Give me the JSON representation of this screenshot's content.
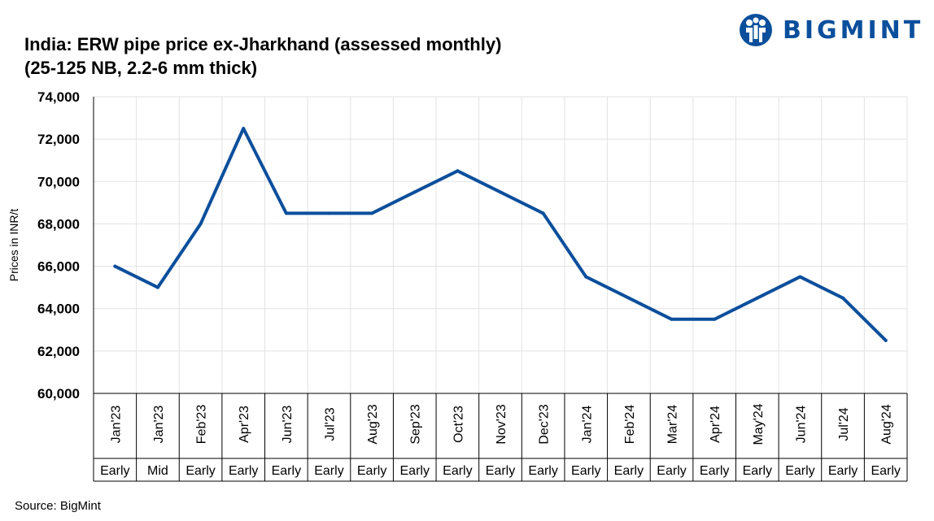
{
  "brand": {
    "name": "BIGMINT",
    "icon": "bigmint-logo-icon",
    "color": "#0b4f9c"
  },
  "source": "Source: BigMint",
  "chart_data": {
    "type": "line",
    "title": "India: ERW pipe price ex-Jharkhand (assessed monthly)",
    "subtitle": "(25-125 NB, 2.2-6 mm thick)",
    "xlabel": "",
    "ylabel": "Prices in INR/t",
    "ylim": [
      60000,
      74000
    ],
    "yticks": [
      60000,
      62000,
      64000,
      66000,
      68000,
      70000,
      72000,
      74000
    ],
    "ytick_labels": [
      "60,000",
      "62,000",
      "64,000",
      "66,000",
      "68,000",
      "70,000",
      "72,000",
      "74,000"
    ],
    "grid": true,
    "legend": "none",
    "categories": [
      "Jan'23",
      "Jan'23",
      "Feb'23",
      "Apr'23",
      "Jun'23",
      "Jul'23",
      "Aug'23",
      "Sep'23",
      "Oct'23",
      "Nov'23",
      "Dec'23",
      "Jan'24",
      "Feb'24",
      "Mar'24",
      "Apr'24",
      "May'24",
      "Jun'24",
      "Jul'24",
      "Aug'24"
    ],
    "subcategories": [
      "Early",
      "Mid",
      "Early",
      "Early",
      "Early",
      "Early",
      "Early",
      "Early",
      "Early",
      "Early",
      "Early",
      "Early",
      "Early",
      "Early",
      "Early",
      "Early",
      "Early",
      "Early",
      "Early"
    ],
    "series": [
      {
        "color": "#0b4f9c",
        "values": [
          66000,
          65000,
          68000,
          72500,
          68500,
          68500,
          68500,
          69500,
          70500,
          69500,
          68500,
          65500,
          64500,
          63500,
          63500,
          64500,
          65500,
          64500,
          62500
        ]
      }
    ]
  }
}
